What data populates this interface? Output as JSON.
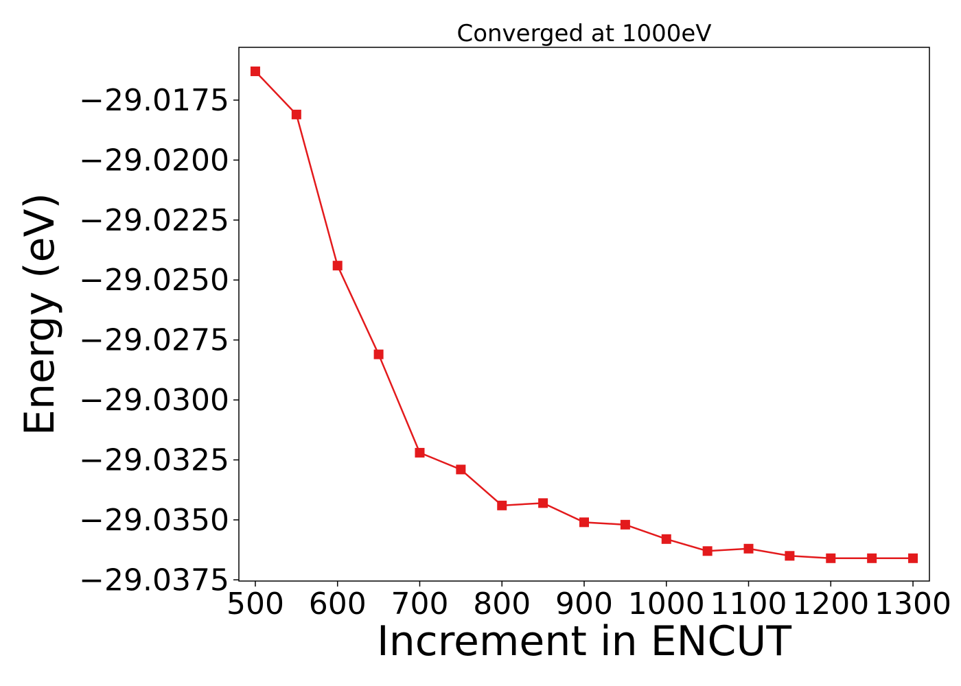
{
  "chart_data": {
    "type": "line",
    "title": "Converged at 1000eV",
    "xlabel": "Increment in ENCUT",
    "ylabel": "Energy (eV)",
    "xlim": [
      480,
      1320
    ],
    "ylim": [
      -29.03755,
      -29.0153
    ],
    "x_ticks": [
      500,
      600,
      700,
      800,
      900,
      1000,
      1100,
      1200,
      1300
    ],
    "y_ticks": [
      -29.0175,
      -29.02,
      -29.0225,
      -29.025,
      -29.0275,
      -29.03,
      -29.0325,
      -29.035,
      -29.0375
    ],
    "x_tick_labels": [
      "500",
      "600",
      "700",
      "800",
      "900",
      "1000",
      "1100",
      "1200",
      "1300"
    ],
    "y_tick_labels": [
      "−29.0175",
      "−29.0200",
      "−29.0225",
      "−29.0250",
      "−29.0275",
      "−29.0300",
      "−29.0325",
      "−29.0350",
      "−29.0375"
    ],
    "grid": false,
    "series": [
      {
        "color": "#e31a1c",
        "marker": "square",
        "x": [
          500,
          550,
          600,
          650,
          700,
          750,
          800,
          850,
          900,
          950,
          1000,
          1050,
          1100,
          1150,
          1200,
          1250,
          1300
        ],
        "y": [
          -29.0163,
          -29.0181,
          -29.0244,
          -29.0281,
          -29.0322,
          -29.0329,
          -29.0344,
          -29.0343,
          -29.0351,
          -29.0352,
          -29.0358,
          -29.0363,
          -29.0362,
          -29.0365,
          -29.0366,
          -29.0366,
          -29.0366
        ]
      }
    ]
  }
}
